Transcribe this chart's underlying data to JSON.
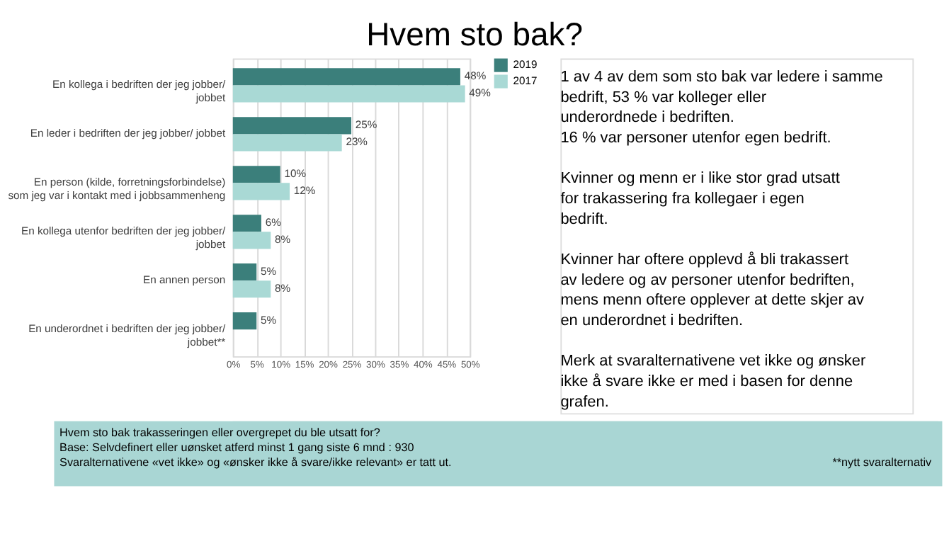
{
  "chart_data": {
    "type": "bar",
    "orientation": "horizontal",
    "title": "Hvem sto bak?",
    "categories": [
      "En kollega i bedriften der jeg jobber/ jobbet",
      "En leder i bedriften der jeg jobber/ jobbet",
      "En person (kilde, forretningsforbindelse) som jeg var i kontakt med i jobbsammenheng",
      "En kollega utenfor bedriften der jeg jobber/ jobbet",
      "En annen person",
      "En underordnet i bedriften der jeg jobber/ jobbet**"
    ],
    "series": [
      {
        "name": "2019",
        "color": "#3b7f7b",
        "values": [
          48,
          25,
          10,
          6,
          5,
          5
        ],
        "value_labels": [
          "48%",
          "25%",
          "10%",
          "6%",
          "5%",
          "5%"
        ]
      },
      {
        "name": "2017",
        "color": "#a9d9d5",
        "values": [
          49,
          23,
          12,
          8,
          8,
          null
        ],
        "value_labels": [
          "49%",
          "23%",
          "12%",
          "8%",
          "8%",
          null
        ]
      }
    ],
    "xlim": [
      0,
      50
    ],
    "xticks": [
      {
        "value": 0,
        "label": "0%"
      },
      {
        "value": 5,
        "label": "5%"
      },
      {
        "value": 10,
        "label": "10%"
      },
      {
        "value": 15,
        "label": "15%"
      },
      {
        "value": 20,
        "label": "20%"
      },
      {
        "value": 25,
        "label": "25%"
      },
      {
        "value": 30,
        "label": "30%"
      },
      {
        "value": 35,
        "label": "35%"
      },
      {
        "value": 40,
        "label": "40%"
      },
      {
        "value": 45,
        "label": "45%"
      },
      {
        "value": 50,
        "label": "50%"
      }
    ],
    "grid": "x",
    "legend": "right",
    "annotations": [
      "1 av 4 av dem som sto bak var ledere i samme bedrift, 53 % var kolleger eller underordnede i bedriften.",
      "16 % var personer utenfor egen bedrift.",
      "Kvinner og menn er i like stor grad utsatt for trakassering fra kollegaer i egen bedrift.",
      "Kvinner har oftere opplevd å bli trakassert av ledere og av personer utenfor bedriften, mens menn oftere opplever at dette skjer av en underordnet i bedriften.",
      "Merk at svaralternativene vet ikke og ønsker ikke å svare ikke er med i basen for denne grafen.",
      "Hvem sto bak trakasseringen eller overgrepet du ble utsatt for?",
      "Base: Selvdefinert eller uønsket atferd minst 1 gang siste 6 mnd : 930",
      "Svaralternativene «vet ikke» og «ønsker ikke å svare/ikke relevant» er tatt ut.",
      "**nytt svaralternativ"
    ]
  }
}
